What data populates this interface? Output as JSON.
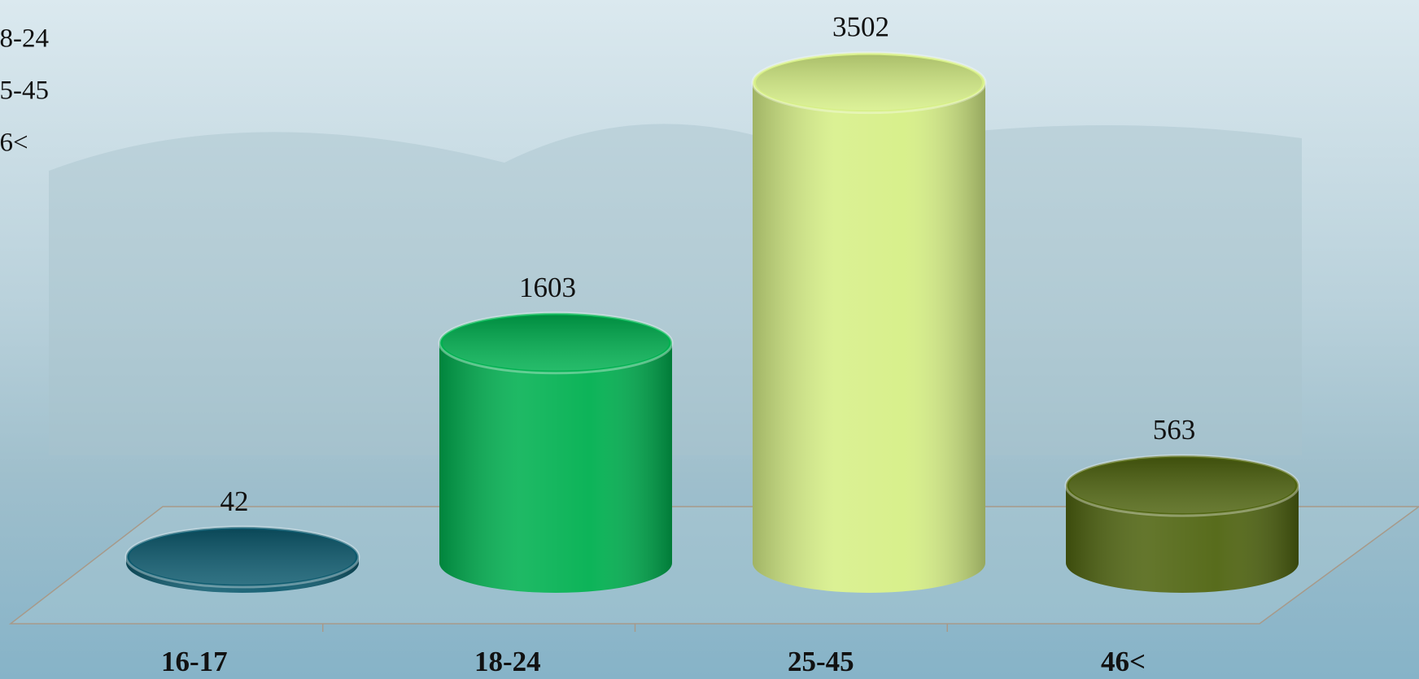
{
  "chart_data": {
    "type": "bar",
    "categories": [
      "16-17",
      "18-24",
      "25-45",
      "46<"
    ],
    "values": [
      42,
      1603,
      3502,
      563
    ],
    "colors": [
      "#0d5a6e",
      "#00b050",
      "#d6ef86",
      "#4f6410"
    ],
    "ylim": [
      0,
      3500
    ]
  }
}
